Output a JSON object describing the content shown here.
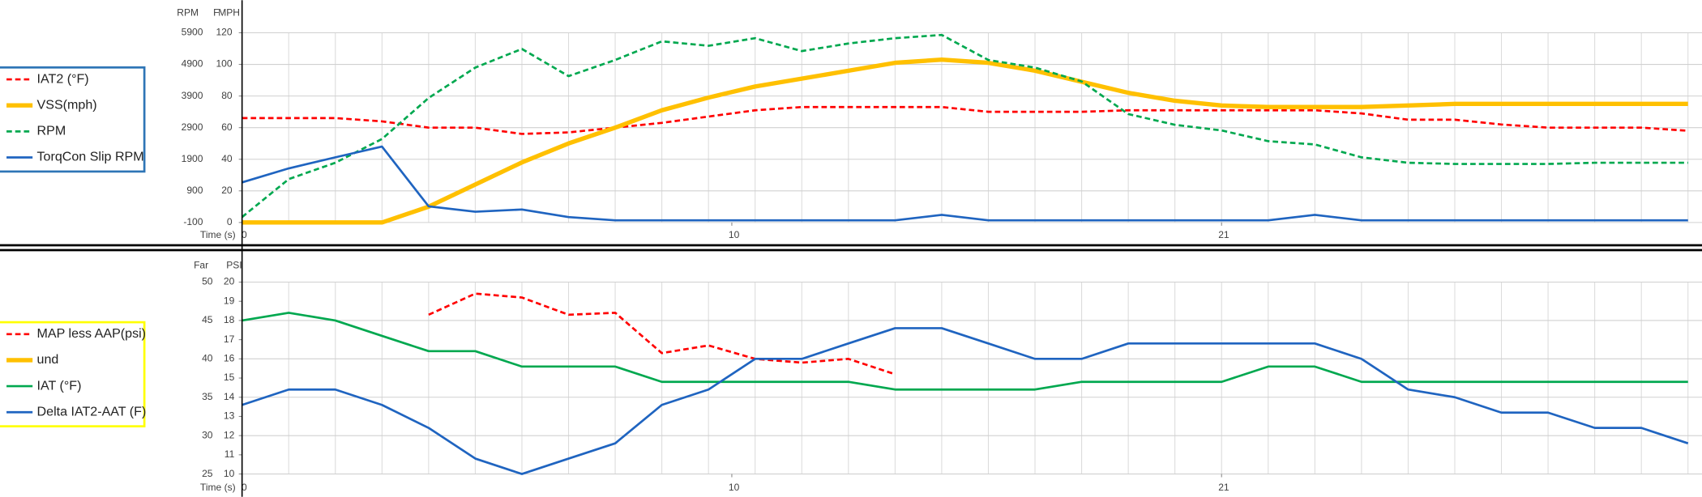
{
  "chart_data": [
    {
      "type": "line",
      "ylabel": "RPM",
      "y2labels": [
        "F",
        "MPH"
      ],
      "xlabel": "Time (s)",
      "x": [
        0,
        1,
        2,
        3,
        4,
        5,
        6,
        7,
        8,
        9,
        10,
        11,
        12,
        13,
        14,
        15,
        16,
        17,
        18,
        19,
        20,
        21,
        22,
        23,
        24,
        25,
        26,
        27,
        28,
        29,
        30,
        31
      ],
      "xlim": [
        0,
        31.3
      ],
      "xticks": [
        0,
        {
          "value": 10.5,
          "label": "10"
        },
        21
      ],
      "xminor": [
        1,
        2,
        3,
        4,
        5,
        6,
        7,
        8,
        9,
        10,
        11,
        12,
        13,
        14,
        15,
        16,
        17,
        18,
        19,
        20,
        21,
        22,
        23,
        24,
        25,
        26,
        27,
        28,
        29,
        30,
        31
      ],
      "ylim": [
        -100,
        5900
      ],
      "yticks": [
        -100,
        900,
        1900,
        2900,
        3900,
        4900,
        5900
      ],
      "y2lim": [
        0,
        120
      ],
      "y2ticks": [
        0,
        20,
        40,
        60,
        80,
        100,
        120
      ],
      "grid": true,
      "legend": "left",
      "legend_border": "#2e75b6",
      "series": [
        {
          "name": "IAT2 (°F)",
          "color": "#ff0000",
          "dash": true,
          "width": 2,
          "axis": "y2",
          "values": [
            66,
            66,
            66,
            64,
            60,
            60,
            56,
            57,
            60,
            63,
            67,
            71,
            73,
            73,
            73,
            73,
            70,
            70,
            70,
            71,
            71,
            71,
            71,
            71,
            69,
            65,
            65,
            62,
            60,
            60,
            60,
            58
          ]
        },
        {
          "name": "VSS(mph)",
          "color": "#ffc000",
          "dash": false,
          "width": 4,
          "axis": "y2",
          "values": [
            0,
            0,
            0,
            0,
            10,
            24,
            38,
            50,
            60,
            71,
            79,
            86,
            91,
            96,
            101,
            103,
            101,
            96,
            89,
            82,
            77,
            74,
            73,
            73,
            73,
            74,
            75,
            75,
            75,
            75,
            75,
            75
          ]
        },
        {
          "name": "RPM",
          "color": "#00a84f",
          "dash": true,
          "width": 2,
          "axis": "y",
          "values": [
            70,
            1270,
            1790,
            2540,
            3840,
            4800,
            5390,
            4530,
            5040,
            5630,
            5490,
            5730,
            5320,
            5560,
            5730,
            5830,
            5040,
            4800,
            4360,
            3330,
            2990,
            2810,
            2470,
            2370,
            1960,
            1790,
            1750,
            1750,
            1750,
            1790,
            1790,
            1790
          ]
        },
        {
          "name": "TorqCon Slip RPM",
          "color": "#1f64c0",
          "dash": false,
          "width": 2,
          "axis": "y",
          "values": [
            1170,
            1610,
            1960,
            2300,
            410,
            240,
            310,
            70,
            -30,
            -30,
            -30,
            -30,
            -30,
            -30,
            -30,
            140,
            -30,
            -30,
            -30,
            -30,
            -30,
            -30,
            -30,
            140,
            -30,
            -30,
            -30,
            -30,
            -30,
            -30,
            -30,
            -30
          ]
        }
      ]
    },
    {
      "type": "line",
      "ylabel": "Far",
      "y2labels": [
        "PSI"
      ],
      "xlabel": "Time (s)",
      "x": [
        0,
        1,
        2,
        3,
        4,
        5,
        6,
        7,
        8,
        9,
        10,
        11,
        12,
        13,
        14,
        15,
        16,
        17,
        18,
        19,
        20,
        21,
        22,
        23,
        24,
        25,
        26,
        27,
        28,
        29,
        30,
        31
      ],
      "xlim": [
        0,
        31.3
      ],
      "xticks": [
        0,
        {
          "value": 10.5,
          "label": "10"
        },
        21
      ],
      "xminor": [
        1,
        2,
        3,
        4,
        5,
        6,
        7,
        8,
        9,
        10,
        11,
        12,
        13,
        14,
        15,
        16,
        17,
        18,
        19,
        20,
        21,
        22,
        23,
        24,
        25,
        26,
        27,
        28,
        29,
        30,
        31
      ],
      "ylim": [
        25,
        50
      ],
      "yticks": [
        25,
        30,
        35,
        40,
        45,
        50
      ],
      "y2lim": [
        10,
        20
      ],
      "y2ticks": [
        10,
        11,
        12,
        13,
        14,
        15,
        16,
        17,
        18,
        19,
        20
      ],
      "grid": true,
      "legend": "left",
      "legend_border": "#ffff00",
      "series": [
        {
          "name": "MAP less AAP(psi)",
          "color": "#ff0000",
          "dash": true,
          "width": 2,
          "axis": "y2",
          "values": [
            null,
            null,
            null,
            null,
            18.3,
            19.4,
            19.2,
            18.3,
            18.4,
            16.3,
            16.7,
            16.0,
            15.8,
            16.0,
            15.2,
            null,
            null,
            null,
            null,
            null,
            null,
            null,
            null,
            null,
            null,
            null,
            null,
            null,
            null,
            null,
            null,
            null
          ]
        },
        {
          "name": "und",
          "color": "#ffc000",
          "dash": false,
          "width": 4,
          "axis": "y",
          "values": [
            null,
            null,
            null,
            null,
            null,
            null,
            null,
            null,
            null,
            null,
            null,
            null,
            null,
            null,
            null,
            null,
            null,
            null,
            null,
            null,
            null,
            null,
            null,
            null,
            null,
            null,
            null,
            null,
            null,
            null,
            null,
            null
          ]
        },
        {
          "name": "IAT (°F)",
          "color": "#00a84f",
          "dash": false,
          "width": 2,
          "axis": "y",
          "values": [
            45,
            46,
            45,
            43,
            41,
            41,
            39,
            39,
            39,
            37,
            37,
            37,
            37,
            37,
            36,
            36,
            36,
            36,
            37,
            37,
            37,
            37,
            39,
            39,
            37,
            37,
            37,
            37,
            37,
            37,
            37,
            37
          ]
        },
        {
          "name": "Delta IAT2-AAT (F)",
          "color": "#1f64c0",
          "dash": false,
          "width": 2,
          "axis": "y",
          "values": [
            34,
            36,
            36,
            34,
            31,
            27,
            25,
            27,
            29,
            34,
            36,
            40,
            40,
            42,
            44,
            44,
            42,
            40,
            40,
            42,
            42,
            42,
            42,
            42,
            40,
            36,
            35,
            33,
            33,
            31,
            31,
            29
          ]
        }
      ]
    }
  ]
}
